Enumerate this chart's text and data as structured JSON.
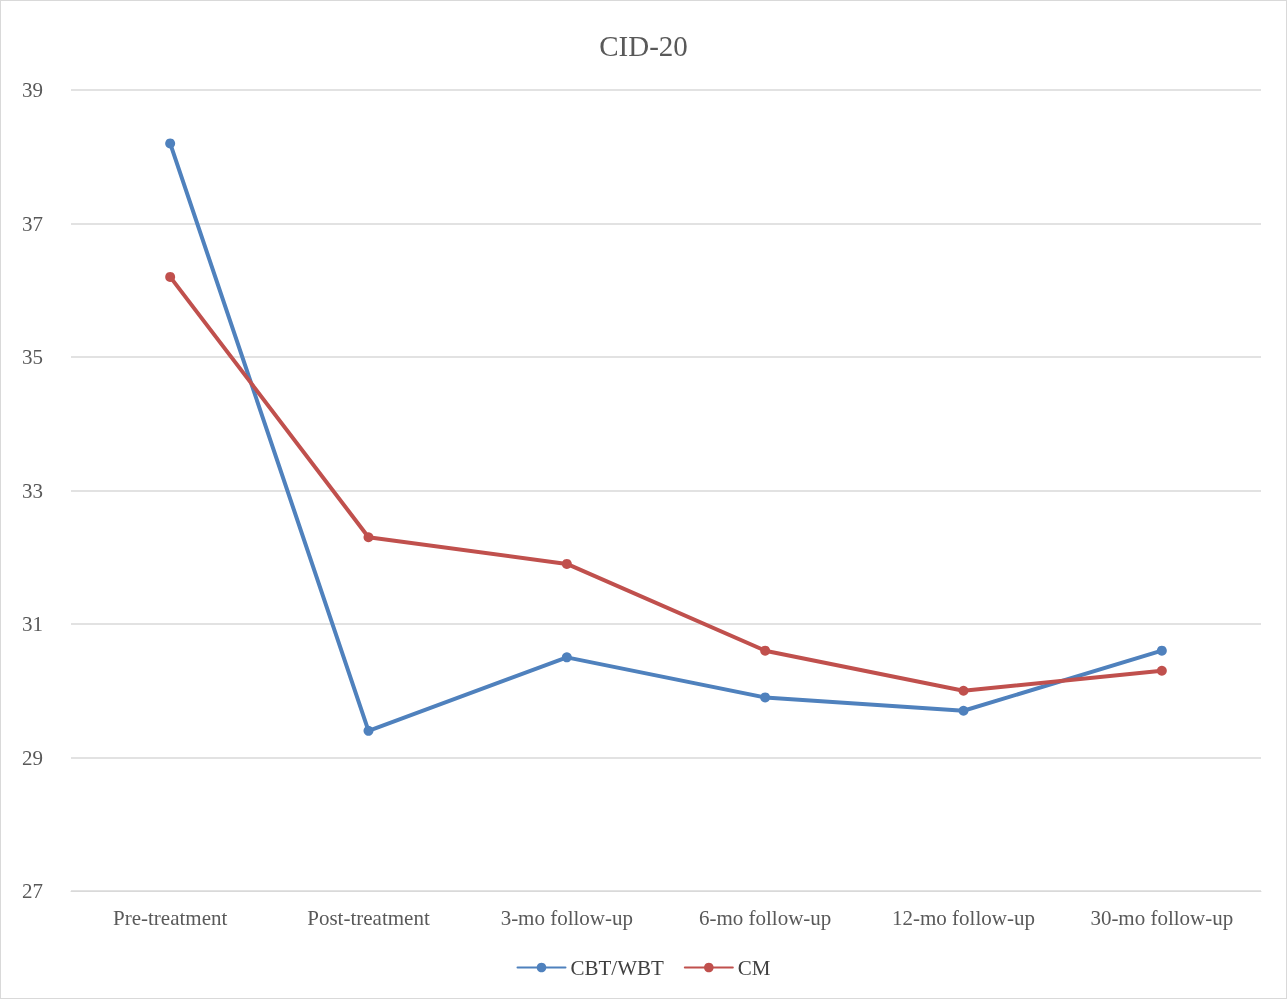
{
  "chart_data": {
    "type": "line",
    "title": "CID-20",
    "categories": [
      "Pre-treatment",
      "Post-treatment",
      "3-mo follow-up",
      "6-mo follow-up",
      "12-mo follow-up",
      "30-mo follow-up"
    ],
    "series": [
      {
        "name": "CBT/WBT",
        "color": "#4f81bd",
        "values": [
          38.2,
          29.4,
          30.5,
          29.9,
          29.7,
          30.6
        ]
      },
      {
        "name": "CM",
        "color": "#c0504d",
        "values": [
          36.2,
          32.3,
          31.9,
          30.6,
          30.0,
          30.3
        ]
      }
    ],
    "ylim": [
      27,
      39
    ],
    "yticks": [
      27,
      29,
      31,
      33,
      35,
      37,
      39
    ],
    "grid": "y",
    "legend": "bottom",
    "marker": "circle",
    "line_style": "solid"
  }
}
